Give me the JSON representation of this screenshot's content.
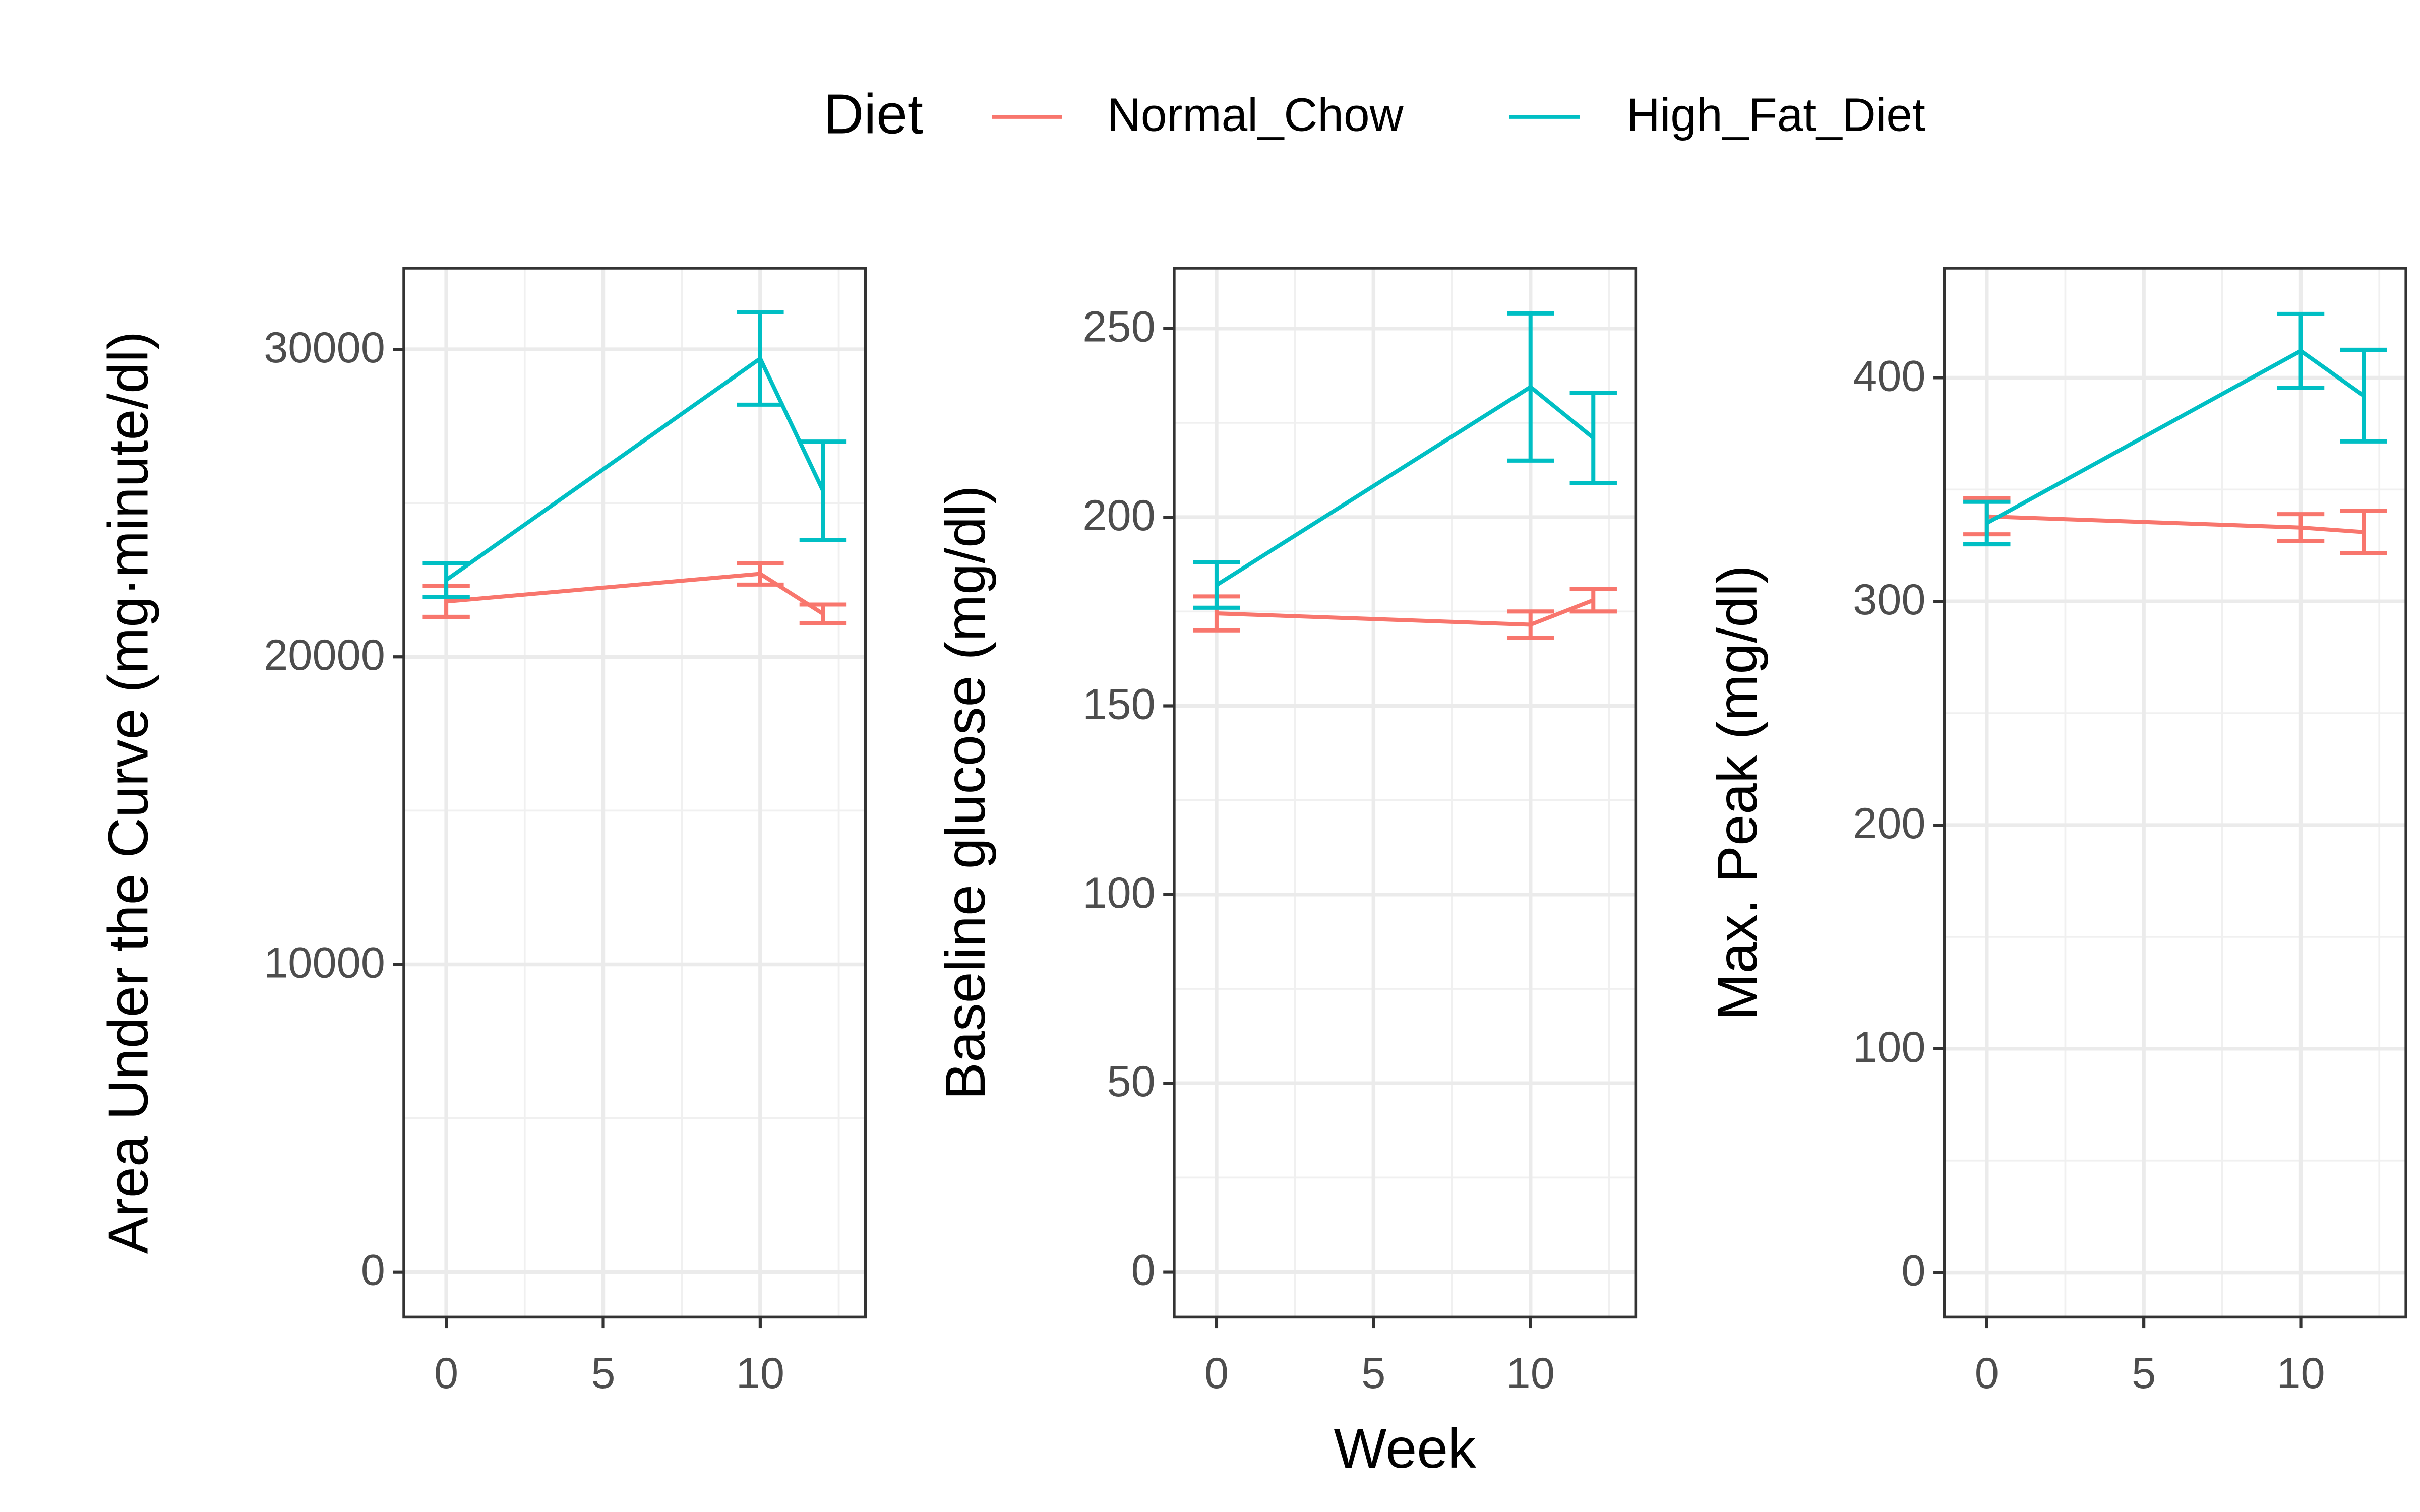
{
  "legend_title": "Diet",
  "chart_data": [
    {
      "type": "line",
      "ylabel": "Area Under the Curve (mg·minute/dl)",
      "x": [
        0,
        10,
        12
      ],
      "xlim": [
        -1.35,
        13.35
      ],
      "xticks": [
        0,
        5,
        10
      ],
      "ylim": [
        -1470,
        32640
      ],
      "yticks": [
        0,
        10000,
        20000,
        30000
      ],
      "grid": true,
      "series": [
        {
          "name": "Normal_Chow",
          "color": "#F8766D",
          "values": [
            21800,
            22700,
            21400
          ],
          "errors": [
            500,
            350,
            300
          ]
        },
        {
          "name": "High_Fat_Diet",
          "color": "#00BFC4",
          "values": [
            22500,
            29700,
            25400
          ],
          "errors": [
            550,
            1500,
            1600
          ]
        }
      ]
    },
    {
      "type": "line",
      "ylabel": "Baseline glucose (mg/dl)",
      "xlabel": "Week",
      "x": [
        0,
        10,
        12
      ],
      "xlim": [
        -1.35,
        13.35
      ],
      "xticks": [
        0,
        5,
        10
      ],
      "ylim": [
        -12,
        266
      ],
      "yticks": [
        0,
        50,
        100,
        150,
        200,
        250
      ],
      "grid": true,
      "series": [
        {
          "color": "#F8766D",
          "values": [
            174.5,
            171.5,
            178
          ],
          "errors": [
            4.5,
            3.5,
            3
          ]
        },
        {
          "color": "#00BFC4",
          "values": [
            182,
            234.5,
            221
          ],
          "errors": [
            6,
            19.5,
            12
          ]
        }
      ]
    },
    {
      "type": "line",
      "ylabel": "Max. Peak (mg/dl)",
      "x": [
        0,
        10,
        12
      ],
      "xlim": [
        -1.35,
        13.35
      ],
      "xticks": [
        0,
        5,
        10
      ],
      "ylim": [
        -20,
        449
      ],
      "yticks": [
        0,
        100,
        200,
        300,
        400
      ],
      "grid": true,
      "series": [
        {
          "color": "#F8766D",
          "values": [
            338,
            333,
            331
          ],
          "errors": [
            8,
            6,
            9.5
          ]
        },
        {
          "color": "#00BFC4",
          "values": [
            335,
            412,
            392
          ],
          "errors": [
            9.5,
            16.5,
            20.5
          ]
        }
      ]
    }
  ]
}
